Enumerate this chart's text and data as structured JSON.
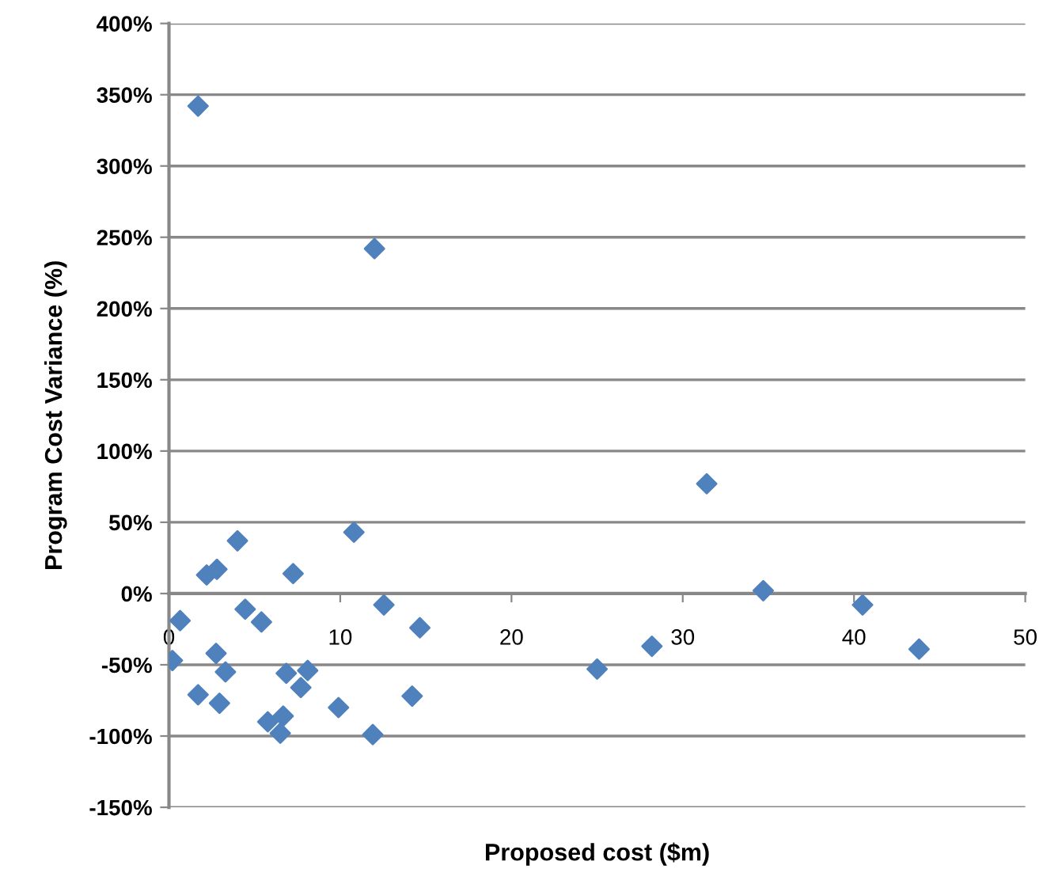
{
  "chart_data": {
    "type": "scatter",
    "xlabel": "Proposed cost ($m)",
    "ylabel": "Program Cost Variance (%)",
    "x": [
      4.0,
      10.8,
      2.2,
      2.8,
      7.25,
      0.65,
      4.45,
      5.4,
      12.55,
      14.65,
      0.2,
      2.75,
      3.3,
      1.7,
      2.95,
      6.85,
      8.1,
      7.7,
      5.77,
      6.67,
      6.5,
      9.9,
      14.2,
      11.9,
      1.7,
      12.0,
      31.4,
      34.7,
      40.5,
      28.2,
      43.8,
      25.0
    ],
    "series": [
      {
        "color": "#4f81bd",
        "values": [
          37,
          43,
          13,
          17,
          14,
          -19,
          -11,
          -20,
          -8,
          -24,
          -47,
          -42,
          -55,
          -71,
          -77,
          -56,
          -54,
          -66,
          -90,
          -86,
          -98,
          -80,
          -72,
          -99,
          342,
          242,
          77,
          2,
          -8,
          -37,
          -39,
          -53
        ]
      }
    ],
    "xlim": [
      0,
      50
    ],
    "xticks": [
      0,
      10,
      20,
      30,
      40,
      50
    ],
    "ylim": [
      -150,
      400
    ],
    "yticks": [
      {
        "value": -150,
        "label": "-150%"
      },
      {
        "value": -100,
        "label": "-100%"
      },
      {
        "value": -50,
        "label": "-50%"
      },
      {
        "value": 0,
        "label": "0%"
      },
      {
        "value": 50,
        "label": "50%"
      },
      {
        "value": 100,
        "label": "100%"
      },
      {
        "value": 150,
        "label": "150%"
      },
      {
        "value": 200,
        "label": "200%"
      },
      {
        "value": 250,
        "label": "250%"
      },
      {
        "value": 300,
        "label": "300%"
      },
      {
        "value": 350,
        "label": "350%"
      },
      {
        "value": 400,
        "label": "400%"
      }
    ],
    "grid": "y",
    "marker": "diamond",
    "legend": false
  }
}
